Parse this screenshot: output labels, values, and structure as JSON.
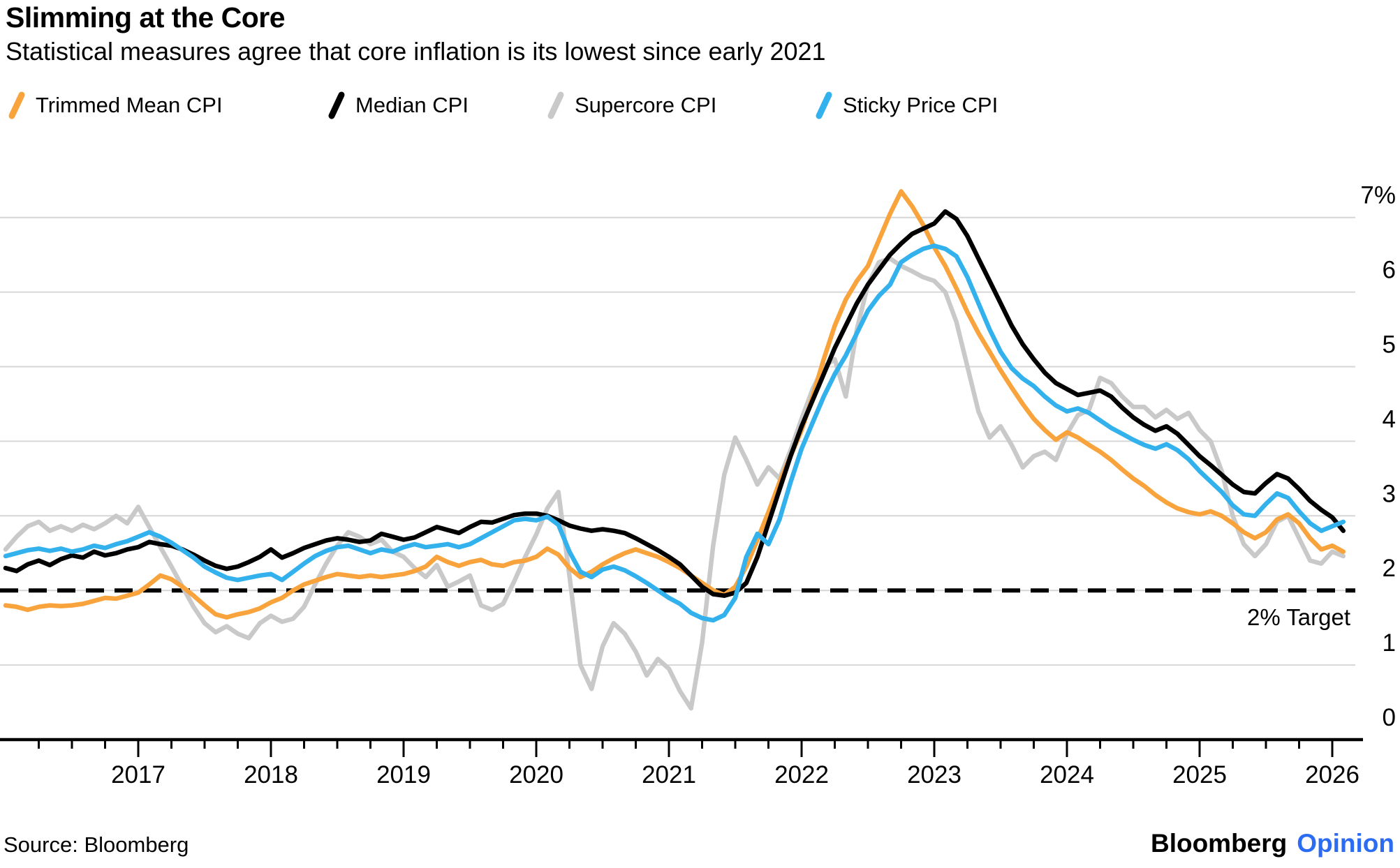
{
  "header": {
    "title": "Slimming at the Core",
    "subtitle": "Statistical measures agree that core inflation is its lowest since early 2021"
  },
  "legend": {
    "items": [
      {
        "label": "Trimmed Mean CPI",
        "color": "#F8A33C"
      },
      {
        "label": "Median CPI",
        "color": "#000000"
      },
      {
        "label": "Supercore CPI",
        "color": "#C9C9C9"
      },
      {
        "label": "Sticky Price CPI",
        "color": "#32B1EC"
      }
    ]
  },
  "chart_data": {
    "type": "line",
    "title": "Slimming at the Core",
    "subtitle": "Statistical measures agree that core inflation is its lowest since early 2021",
    "x_monthly_start": "2016-01",
    "x_monthly_end": "2026-02",
    "x_tick_years": [
      2017,
      2018,
      2019,
      2020,
      2021,
      2022,
      2023,
      2024,
      2025,
      2026
    ],
    "ylim": [
      0,
      7
    ],
    "y_ticks": {
      "values": [
        7,
        6,
        5,
        4,
        3,
        2,
        1,
        0
      ],
      "labels": [
        "7%",
        "6",
        "5",
        "4",
        "3",
        "2",
        "1",
        "0"
      ]
    },
    "grid": true,
    "legend_position": "top",
    "target_line": {
      "value": 2,
      "label": "2% Target",
      "style": "dashed",
      "color": "#000000"
    },
    "series": [
      {
        "name": "Trimmed Mean CPI",
        "color": "#F8A33C",
        "values": [
          1.8,
          1.78,
          1.74,
          1.78,
          1.8,
          1.79,
          1.8,
          1.82,
          1.86,
          1.9,
          1.89,
          1.93,
          1.97,
          2.08,
          2.2,
          2.15,
          2.05,
          1.93,
          1.8,
          1.68,
          1.64,
          1.68,
          1.71,
          1.76,
          1.84,
          1.9,
          2.0,
          2.08,
          2.13,
          2.18,
          2.22,
          2.2,
          2.18,
          2.2,
          2.18,
          2.2,
          2.22,
          2.26,
          2.32,
          2.45,
          2.38,
          2.33,
          2.38,
          2.41,
          2.35,
          2.33,
          2.38,
          2.4,
          2.45,
          2.56,
          2.48,
          2.3,
          2.18,
          2.25,
          2.35,
          2.43,
          2.5,
          2.55,
          2.5,
          2.45,
          2.38,
          2.3,
          2.2,
          2.1,
          2.0,
          1.94,
          2.05,
          2.32,
          2.68,
          3.05,
          3.45,
          3.8,
          4.15,
          4.6,
          5.1,
          5.55,
          5.9,
          6.15,
          6.35,
          6.7,
          7.05,
          7.35,
          7.15,
          6.9,
          6.6,
          6.35,
          6.05,
          5.73,
          5.45,
          5.2,
          4.95,
          4.72,
          4.5,
          4.3,
          4.15,
          4.02,
          4.12,
          4.05,
          3.95,
          3.86,
          3.75,
          3.62,
          3.5,
          3.4,
          3.28,
          3.18,
          3.1,
          3.05,
          3.02,
          3.06,
          3.0,
          2.9,
          2.78,
          2.7,
          2.78,
          2.95,
          3.02,
          2.9,
          2.7,
          2.55,
          2.6,
          2.52
        ]
      },
      {
        "name": "Median CPI",
        "color": "#000000",
        "values": [
          2.3,
          2.26,
          2.35,
          2.4,
          2.34,
          2.42,
          2.47,
          2.44,
          2.52,
          2.47,
          2.5,
          2.55,
          2.58,
          2.65,
          2.62,
          2.6,
          2.55,
          2.48,
          2.4,
          2.33,
          2.29,
          2.32,
          2.38,
          2.45,
          2.55,
          2.44,
          2.5,
          2.57,
          2.62,
          2.67,
          2.7,
          2.68,
          2.65,
          2.67,
          2.76,
          2.72,
          2.68,
          2.71,
          2.78,
          2.85,
          2.81,
          2.77,
          2.85,
          2.92,
          2.91,
          2.96,
          3.01,
          3.03,
          3.03,
          3.0,
          2.94,
          2.87,
          2.83,
          2.8,
          2.82,
          2.8,
          2.77,
          2.7,
          2.62,
          2.54,
          2.45,
          2.35,
          2.2,
          2.05,
          1.95,
          1.93,
          1.97,
          2.1,
          2.45,
          2.9,
          3.35,
          3.8,
          4.2,
          4.55,
          4.9,
          5.25,
          5.55,
          5.85,
          6.1,
          6.3,
          6.5,
          6.65,
          6.78,
          6.85,
          6.92,
          7.08,
          6.98,
          6.75,
          6.45,
          6.15,
          5.85,
          5.55,
          5.3,
          5.1,
          4.92,
          4.78,
          4.7,
          4.62,
          4.65,
          4.68,
          4.6,
          4.45,
          4.32,
          4.22,
          4.14,
          4.2,
          4.1,
          3.95,
          3.8,
          3.68,
          3.55,
          3.42,
          3.32,
          3.3,
          3.44,
          3.56,
          3.5,
          3.36,
          3.2,
          3.08,
          2.98,
          2.8
        ]
      },
      {
        "name": "Supercore CPI",
        "color": "#C9C9C9",
        "values": [
          2.55,
          2.72,
          2.86,
          2.92,
          2.8,
          2.86,
          2.8,
          2.88,
          2.82,
          2.9,
          3.0,
          2.9,
          3.12,
          2.85,
          2.58,
          2.32,
          2.05,
          1.78,
          1.56,
          1.44,
          1.52,
          1.42,
          1.36,
          1.56,
          1.66,
          1.58,
          1.62,
          1.78,
          2.08,
          2.36,
          2.6,
          2.78,
          2.72,
          2.62,
          2.68,
          2.52,
          2.45,
          2.3,
          2.18,
          2.34,
          2.05,
          2.12,
          2.2,
          1.8,
          1.74,
          1.82,
          2.12,
          2.45,
          2.75,
          3.1,
          3.32,
          2.2,
          1.0,
          0.68,
          1.25,
          1.56,
          1.42,
          1.18,
          0.86,
          1.08,
          0.95,
          0.65,
          0.42,
          1.3,
          2.6,
          3.55,
          4.05,
          3.75,
          3.42,
          3.65,
          3.5,
          3.88,
          4.3,
          4.7,
          5.0,
          5.1,
          4.6,
          5.5,
          6.1,
          6.4,
          6.45,
          6.35,
          6.28,
          6.2,
          6.15,
          6.0,
          5.6,
          5.0,
          4.4,
          4.05,
          4.2,
          3.95,
          3.65,
          3.8,
          3.86,
          3.75,
          4.1,
          4.35,
          4.42,
          4.85,
          4.78,
          4.6,
          4.46,
          4.46,
          4.32,
          4.42,
          4.3,
          4.38,
          4.15,
          4.0,
          3.6,
          3.0,
          2.62,
          2.46,
          2.62,
          2.92,
          3.0,
          2.7,
          2.4,
          2.36,
          2.52,
          2.46
        ]
      },
      {
        "name": "Sticky Price CPI",
        "color": "#32B1EC",
        "values": [
          2.46,
          2.5,
          2.54,
          2.56,
          2.53,
          2.56,
          2.52,
          2.55,
          2.6,
          2.57,
          2.62,
          2.66,
          2.72,
          2.78,
          2.72,
          2.64,
          2.54,
          2.44,
          2.32,
          2.24,
          2.17,
          2.14,
          2.17,
          2.2,
          2.22,
          2.14,
          2.25,
          2.36,
          2.46,
          2.53,
          2.58,
          2.6,
          2.55,
          2.5,
          2.55,
          2.52,
          2.58,
          2.62,
          2.58,
          2.6,
          2.62,
          2.58,
          2.62,
          2.7,
          2.78,
          2.86,
          2.94,
          2.96,
          2.94,
          2.99,
          2.88,
          2.52,
          2.25,
          2.18,
          2.28,
          2.32,
          2.27,
          2.19,
          2.1,
          2.0,
          1.9,
          1.82,
          1.7,
          1.63,
          1.6,
          1.67,
          1.9,
          2.45,
          2.76,
          2.62,
          2.95,
          3.45,
          3.9,
          4.25,
          4.6,
          4.9,
          5.15,
          5.45,
          5.75,
          5.95,
          6.1,
          6.4,
          6.5,
          6.58,
          6.62,
          6.58,
          6.48,
          6.2,
          5.85,
          5.5,
          5.2,
          4.98,
          4.84,
          4.74,
          4.6,
          4.48,
          4.4,
          4.44,
          4.38,
          4.28,
          4.18,
          4.1,
          4.02,
          3.95,
          3.9,
          3.96,
          3.88,
          3.76,
          3.6,
          3.46,
          3.32,
          3.14,
          3.02,
          3.0,
          3.16,
          3.3,
          3.24,
          3.06,
          2.9,
          2.8,
          2.86,
          2.92
        ]
      }
    ]
  },
  "footer": {
    "source": "Source: Bloomberg",
    "brand": {
      "black": "Bloomberg",
      "blue": "Opinion",
      "blue_color": "#2B6CF3"
    }
  }
}
